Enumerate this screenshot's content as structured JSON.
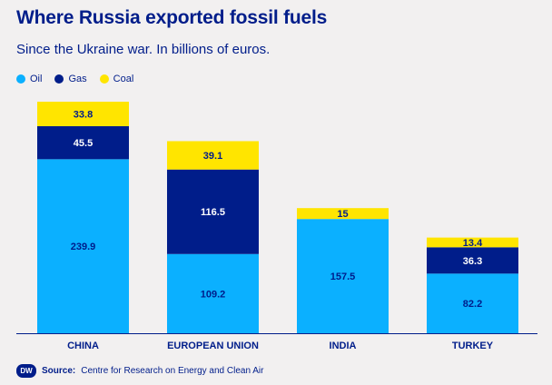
{
  "header": {
    "title": "Where Russia exported fossil fuels",
    "subtitle": "Since the Ukraine war. In billions of euros."
  },
  "legend": [
    {
      "label": "Oil",
      "color": "#0bb0ff"
    },
    {
      "label": "Gas",
      "color": "#001d8a"
    },
    {
      "label": "Coal",
      "color": "#ffe500"
    }
  ],
  "chart_data": {
    "type": "bar",
    "stacked": true,
    "title": "Where Russia exported fossil fuels",
    "subtitle": "Since the Ukraine war. In billions of euros.",
    "categories": [
      "CHINA",
      "EUROPEAN UNION",
      "INDIA",
      "TURKEY"
    ],
    "series": [
      {
        "name": "Oil",
        "color": "#0bb0ff",
        "values": [
          239.9,
          109.2,
          157.5,
          82.2
        ]
      },
      {
        "name": "Gas",
        "color": "#001d8a",
        "values": [
          45.5,
          116.5,
          null,
          36.3
        ]
      },
      {
        "name": "Coal",
        "color": "#ffe500",
        "values": [
          33.8,
          39.1,
          15,
          13.4
        ]
      }
    ],
    "ylim": [
      0,
      319.2
    ],
    "legend_position": "top-left",
    "grid": false
  },
  "footer": {
    "logo_text": "DW",
    "source_label": "Source:",
    "source_text": "Centre for Research on Energy and Clean Air"
  }
}
